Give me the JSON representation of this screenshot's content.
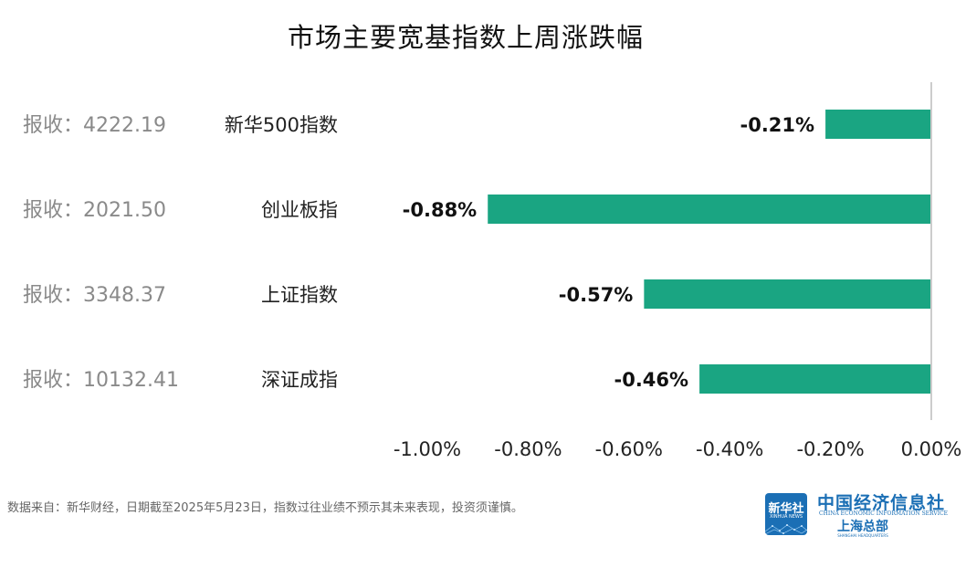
{
  "title": "市场主要宽基指数上周涨跌幅",
  "chart_data": {
    "type": "bar",
    "orientation": "horizontal",
    "title": "市场主要宽基指数上周涨跌幅",
    "categories": [
      "新华500指数",
      "创业板指",
      "上证指数",
      "深证成指"
    ],
    "close_labels": [
      "报收：4222.19",
      "报收：2021.50",
      "报收：3348.37",
      "报收：10132.41"
    ],
    "values": [
      -0.21,
      -0.88,
      -0.57,
      -0.46
    ],
    "value_labels": [
      "-0.21%",
      "-0.88%",
      "-0.57%",
      "-0.46%"
    ],
    "xlim": [
      -1.0,
      0.0
    ],
    "xticks": [
      -1.0,
      -0.8,
      -0.6,
      -0.4,
      -0.2,
      0.0
    ],
    "xtick_labels": [
      "-1.00%",
      "-0.80%",
      "-0.60%",
      "-0.40%",
      "-0.20%",
      "0.00%"
    ],
    "bar_color": "#1aa582",
    "grid": false,
    "legend": "none"
  },
  "footnote": "数据来自：新华财经，日期截至2025年5月23日，指数过往业绩不预示其未来表现，投资须谨慎。",
  "logo": {
    "badge_cn": "新华社",
    "badge_en": "XINHUA NEWS",
    "org_cn": "中国经济信息社",
    "org_en": "CHINA ECONOMIC INFORMATION SERVICE",
    "sub_cn": "上海总部",
    "sub_en": "SHANGHAI HEADQUARTERS",
    "color": "#1b6fb5"
  }
}
